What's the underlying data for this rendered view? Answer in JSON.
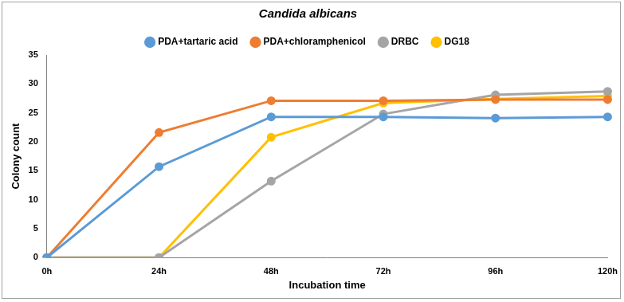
{
  "chart_data": {
    "type": "line",
    "title": "Candida albicans",
    "x_label": "Incubation time",
    "y_label": "Colony count",
    "categories": [
      "0h",
      "24h",
      "48h",
      "72h",
      "96h",
      "120h"
    ],
    "series": [
      {
        "name": "PDA+tartaric acid",
        "color": "#5b9bd5",
        "values": [
          0,
          15.7,
          24.3,
          24.3,
          24.1,
          24.3
        ]
      },
      {
        "name": "PDA+chloramphenicol",
        "color": "#ed7d31",
        "values": [
          0,
          21.6,
          27.1,
          27.1,
          27.3,
          27.3
        ]
      },
      {
        "name": "DRBC",
        "color": "#a5a5a5",
        "values": [
          0,
          0,
          13.2,
          24.8,
          28.1,
          28.7
        ]
      },
      {
        "name": "DG18",
        "color": "#ffc000",
        "values": [
          0,
          0,
          20.8,
          26.7,
          27.4,
          27.9
        ]
      }
    ],
    "ylim": [
      0,
      35
    ],
    "yticks": [
      0,
      5,
      10,
      15,
      20,
      25,
      30,
      35
    ],
    "grid": false,
    "legend": "top",
    "marker": "circle",
    "line_style": "solid"
  }
}
